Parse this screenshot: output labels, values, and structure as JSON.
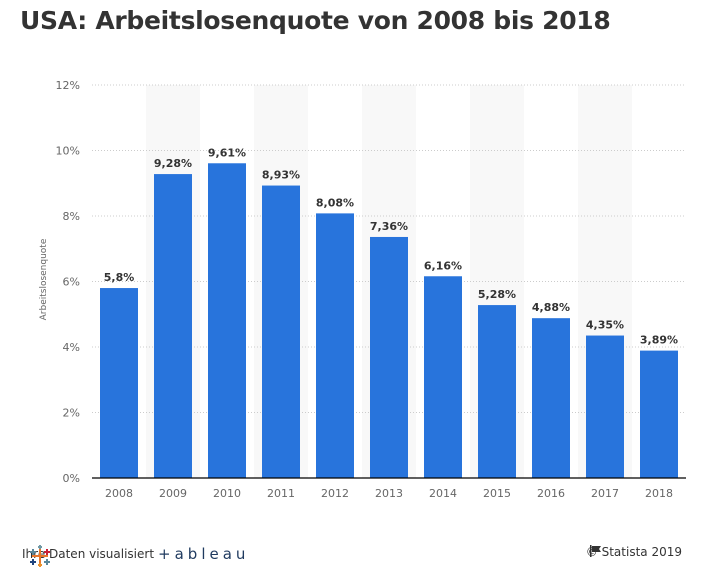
{
  "chart_data": {
    "type": "bar",
    "title": "USA: Arbeitslosenquote von 2008 bis 2018",
    "xlabel": "",
    "ylabel": "Arbeitslosenquote",
    "categories": [
      "2008",
      "2009",
      "2010",
      "2011",
      "2012",
      "2013",
      "2014",
      "2015",
      "2016",
      "2017",
      "2018"
    ],
    "values": [
      5.8,
      9.28,
      9.61,
      8.93,
      8.08,
      7.36,
      6.16,
      5.28,
      4.88,
      4.35,
      3.89
    ],
    "value_labels": [
      "5,8%",
      "9,28%",
      "9,61%",
      "8,93%",
      "8,08%",
      "7,36%",
      "6,16%",
      "5,28%",
      "4,88%",
      "4,35%",
      "3,89%"
    ],
    "ylim": [
      0,
      12
    ],
    "yticks": [
      0,
      2,
      4,
      6,
      8,
      10,
      12
    ],
    "ytick_labels": [
      "0%",
      "2%",
      "4%",
      "6%",
      "8%",
      "10%",
      "12%"
    ],
    "grid": true,
    "bar_color": "#2874dc",
    "band_color": "#f8f8f8"
  },
  "footer": {
    "left_text": "Ihre Daten visualisiert",
    "brand": "+ableau",
    "right_text": "© Statista 2019"
  }
}
